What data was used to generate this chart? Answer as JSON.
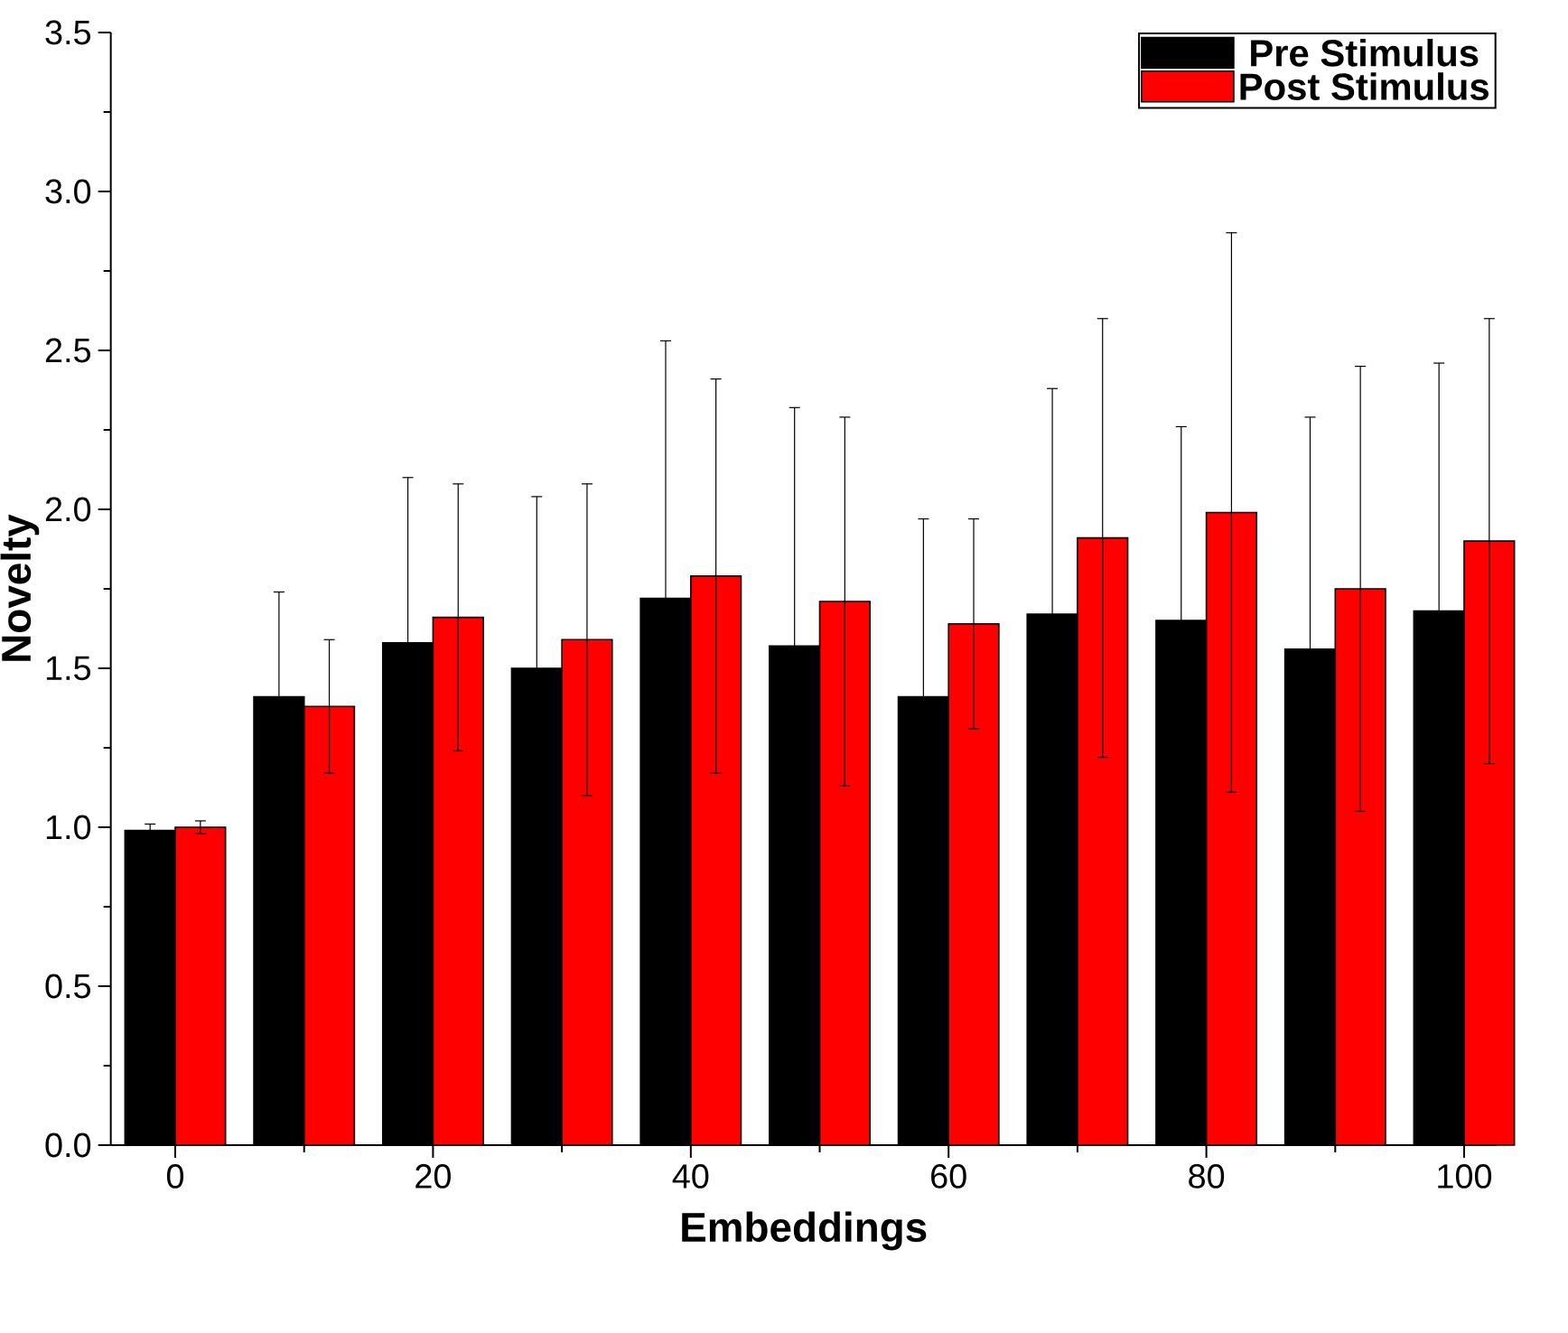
{
  "chart_data": {
    "type": "bar",
    "xlabel": "Embeddings",
    "ylabel": "Novelty",
    "x": [
      0,
      10,
      20,
      30,
      40,
      50,
      60,
      70,
      80,
      90,
      100
    ],
    "series": [
      {
        "name": "Pre Stimulus",
        "color": "#000000",
        "values": [
          0.99,
          1.41,
          1.58,
          1.5,
          1.72,
          1.57,
          1.41,
          1.67,
          1.65,
          1.56,
          1.68
        ],
        "errors": [
          0.02,
          0.33,
          0.52,
          0.54,
          0.81,
          0.75,
          0.56,
          0.71,
          0.61,
          0.73,
          0.78
        ]
      },
      {
        "name": "Post Stimulus",
        "color": "#ff0000",
        "values": [
          1.0,
          1.38,
          1.66,
          1.59,
          1.79,
          1.71,
          1.64,
          1.91,
          1.99,
          1.75,
          1.9
        ],
        "errors": [
          0.02,
          0.21,
          0.42,
          0.49,
          0.62,
          0.58,
          0.33,
          0.69,
          0.88,
          0.7,
          0.7
        ]
      }
    ],
    "xlim": [
      -5,
      102.5
    ],
    "xticks": [
      0,
      20,
      40,
      60,
      80,
      100
    ],
    "ylim": [
      0,
      3.5
    ],
    "yticks": [
      {
        "value": 0,
        "label": "0.0"
      },
      {
        "value": 0.5,
        "label": "0.5"
      },
      {
        "value": 1,
        "label": "1.0"
      },
      {
        "value": 1.5,
        "label": "1.5"
      },
      {
        "value": 2,
        "label": "2.0"
      },
      {
        "value": 2.5,
        "label": "2.5"
      },
      {
        "value": 3,
        "label": "3.0"
      },
      {
        "value": 3.5,
        "label": "3.5"
      }
    ],
    "legend": "top right",
    "grid": false
  }
}
